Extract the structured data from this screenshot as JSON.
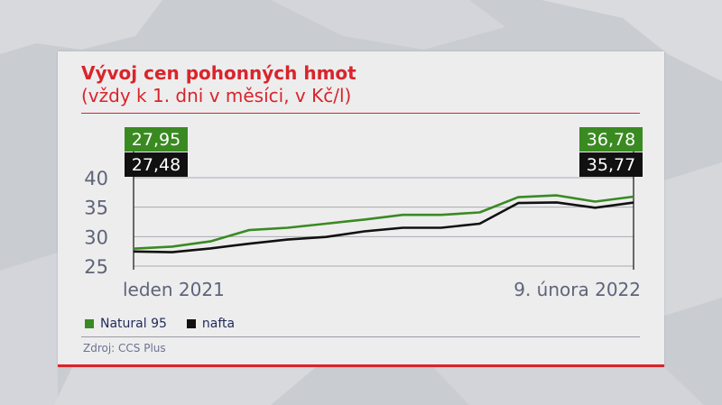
{
  "colors": {
    "title": "#d8252b",
    "natural": "#3a8a22",
    "diesel": "#111111",
    "axis_text": "#5f6478",
    "legend_text": "#1f2a5a"
  },
  "legend": {
    "natural_label": "Natural 95",
    "diesel_label": "nafta"
  },
  "source": "Zdroj: CCS Plus",
  "chart_data": {
    "type": "line",
    "title": "Vývoj cen pohonných hmot",
    "subtitle": "(vždy k 1. dni v měsíci, v Kč/l)",
    "xlabel": "",
    "ylabel": "",
    "x_start_label": "leden 2021",
    "x_end_label": "9. února 2022",
    "y_ticks": [
      40,
      35,
      30,
      25
    ],
    "ylim": [
      25,
      40
    ],
    "grid": "horizontal",
    "legend_position": "bottom-left",
    "series": [
      {
        "name": "Natural 95",
        "values": [
          27.95,
          28.3,
          29.2,
          31.1,
          31.5,
          32.2,
          32.9,
          33.7,
          33.7,
          34.1,
          36.7,
          37.0,
          35.95,
          36.78
        ],
        "start_label": "27,95",
        "end_label": "36,78"
      },
      {
        "name": "nafta",
        "values": [
          27.48,
          27.35,
          28.0,
          28.8,
          29.5,
          29.95,
          30.9,
          31.5,
          31.5,
          32.2,
          35.7,
          35.8,
          34.9,
          35.77
        ],
        "start_label": "27,48",
        "end_label": "35,77"
      }
    ]
  }
}
